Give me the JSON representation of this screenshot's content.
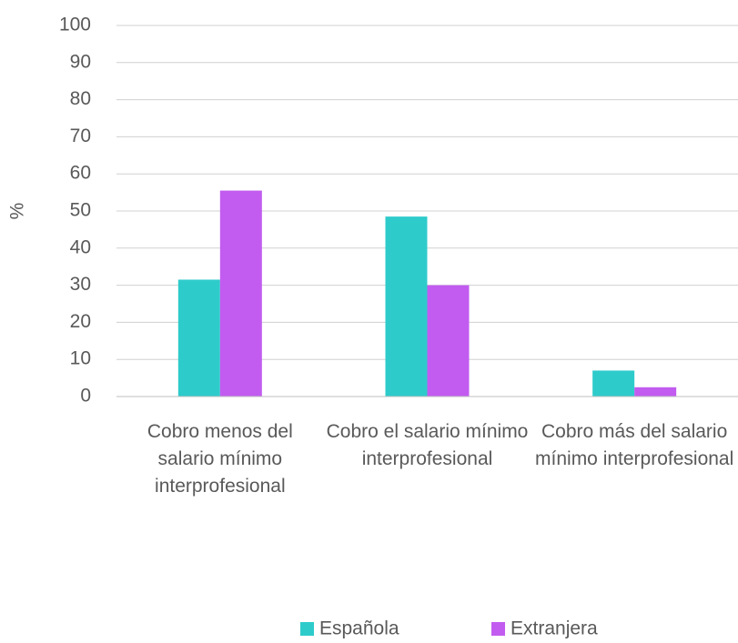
{
  "chart_data": {
    "type": "bar",
    "y_label": "%",
    "categories": [
      "Cobro menos del salario mínimo interprofesional",
      "Cobro el salario mínimo interprofesional",
      "Cobro más del salario mínimo interprofesional"
    ],
    "series": [
      {
        "name": "Española",
        "color": "#2ecbcb",
        "values": [
          31.5,
          48.5,
          7
        ]
      },
      {
        "name": "Extranjera",
        "color": "#c25cf0",
        "values": [
          55.5,
          30,
          2.5
        ]
      }
    ],
    "ylim": [
      0,
      100
    ],
    "yticks": [
      0,
      10,
      20,
      30,
      40,
      50,
      60,
      70,
      80,
      90,
      100
    ],
    "grid": true,
    "legend": "bottom"
  }
}
